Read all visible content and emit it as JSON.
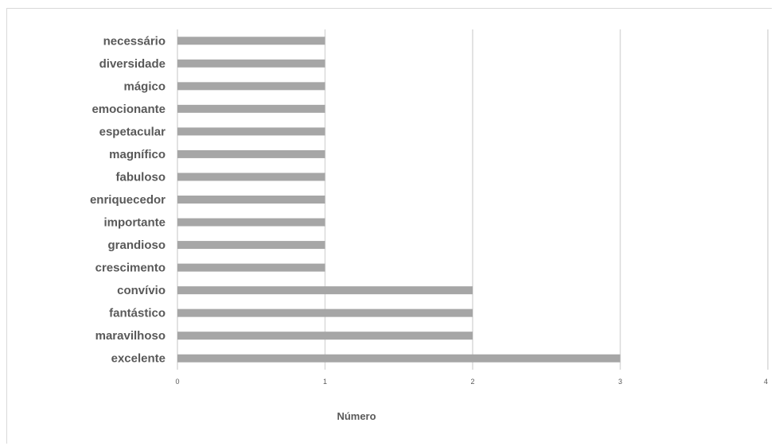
{
  "chart_data": {
    "type": "bar",
    "orientation": "horizontal",
    "categories": [
      "necessário",
      "diversidade",
      "mágico",
      "emocionante",
      "espetacular",
      "magnífico",
      "fabuloso",
      "enriquecedor",
      "importante",
      "grandioso",
      "crescimento",
      "convívio",
      "fantástico",
      "maravilhoso",
      "excelente"
    ],
    "values": [
      1,
      1,
      1,
      1,
      1,
      1,
      1,
      1,
      1,
      1,
      1,
      2,
      2,
      2,
      3
    ],
    "xticks": [
      "0",
      "1",
      "2",
      "3",
      "4"
    ],
    "xlim": [
      0,
      4
    ],
    "xlabel": "Número",
    "grid": "vertical",
    "legend": "none",
    "colors": {
      "bar": "#a6a6a6",
      "grid": "#d9d9d9",
      "text": "#595959"
    }
  }
}
